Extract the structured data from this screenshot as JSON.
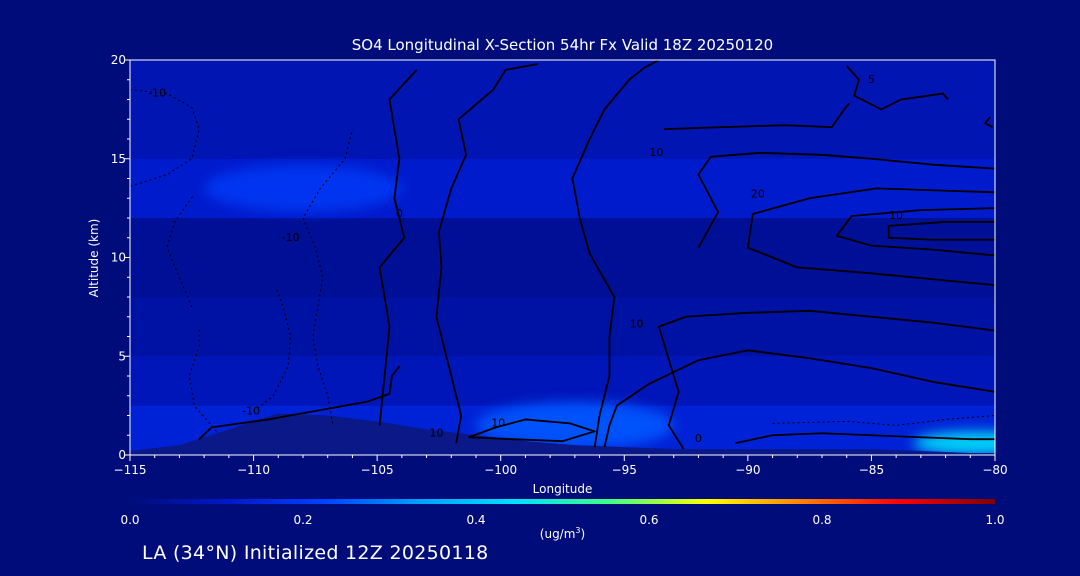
{
  "chart_data": {
    "type": "contour",
    "title": "SO4 Longitudinal X-Section 54hr  Fx Valid 18Z 20250120",
    "xlabel": "Longitude",
    "ylabel": "Altitude (km)",
    "xlim": [
      -115,
      -80
    ],
    "ylim": [
      0,
      20
    ],
    "x_ticks": [
      -115,
      -110,
      -105,
      -100,
      -95,
      -90,
      -85,
      -80
    ],
    "y_ticks": [
      0,
      5,
      10,
      15,
      20
    ],
    "colorbar": {
      "label": "(ug/m3)",
      "label_base": "(ug/m",
      "label_sup": "3",
      "label_end": ")",
      "range": [
        0.0,
        1.0
      ],
      "ticks": [
        "0.0",
        "0.2",
        "0.4",
        "0.6",
        "0.8",
        "1.0"
      ],
      "colors": [
        "#000c7a",
        "#0018c8",
        "#0040ff",
        "#00a0ff",
        "#00e0ff",
        "#40ff80",
        "#ffff00",
        "#ff8000",
        "#ff0000",
        "#800000"
      ]
    },
    "shading_bands": [
      {
        "y0": 15,
        "y1": 20,
        "value": 0.08
      },
      {
        "y0": 12,
        "y1": 15,
        "value": 0.12
      },
      {
        "y0": 8,
        "y1": 12,
        "value": 0.04
      },
      {
        "y0": 5,
        "y1": 8,
        "value": 0.06
      },
      {
        "y0": 2.5,
        "y1": 5,
        "value": 0.09
      },
      {
        "y0": 0,
        "y1": 2.5,
        "value": 0.14
      }
    ],
    "highlights": [
      {
        "x": -108,
        "y": 13.5,
        "rx": 4,
        "ry": 1.2,
        "value": 0.2
      },
      {
        "x": -97,
        "y": 1.5,
        "rx": 4,
        "ry": 1.2,
        "value": 0.25
      },
      {
        "x": -80.8,
        "y": 0.6,
        "rx": 2.5,
        "ry": 0.6,
        "value": 0.45
      }
    ],
    "terrain": {
      "x": [
        -115,
        -113,
        -111,
        -109,
        -107,
        -105,
        -103,
        -101,
        -99,
        -97,
        -95,
        -93,
        -91,
        -89,
        -87,
        -85,
        -83,
        -81,
        -80
      ],
      "y": [
        0.2,
        0.5,
        1.3,
        2.1,
        2.0,
        1.7,
        1.3,
        1.0,
        0.7,
        0.5,
        0.4,
        0.3,
        0.3,
        0.3,
        0.3,
        0.3,
        0.2,
        0.1,
        0.1
      ]
    },
    "contours": [
      {
        "value": 0,
        "points": [
          [
            -104.9,
            1.5
          ],
          [
            -104.7,
            4
          ],
          [
            -104.5,
            6.5
          ],
          [
            -104.9,
            9.5
          ],
          [
            -103.9,
            11
          ],
          [
            -104.3,
            13
          ],
          [
            -104.1,
            15
          ],
          [
            -104.5,
            18
          ],
          [
            -103.4,
            19.5
          ]
        ]
      },
      {
        "value": 0,
        "points": [
          [
            -101.8,
            0.6
          ],
          [
            -101.6,
            2
          ],
          [
            -102.1,
            4.5
          ],
          [
            -102.6,
            7
          ],
          [
            -102.4,
            9.5
          ],
          [
            -102.5,
            11.3
          ],
          [
            -102.0,
            13.5
          ],
          [
            -101.4,
            15.2
          ],
          [
            -101.7,
            17
          ],
          [
            -100.3,
            18.5
          ],
          [
            -99.8,
            19.5
          ],
          [
            -98.5,
            19.8
          ]
        ]
      },
      {
        "value": 0,
        "points": [
          [
            -96.2,
            0.4
          ],
          [
            -96.0,
            2
          ],
          [
            -95.6,
            4
          ],
          [
            -95.6,
            6
          ],
          [
            -95.4,
            8
          ],
          [
            -96.4,
            10.2
          ],
          [
            -96.8,
            12
          ],
          [
            -97.1,
            14
          ],
          [
            -96.4,
            16
          ],
          [
            -95.8,
            17.5
          ],
          [
            -94.8,
            19
          ],
          [
            -94.2,
            19.6
          ],
          [
            -93.6,
            20
          ]
        ]
      },
      {
        "value": 10,
        "points": [
          [
            -92.6,
            0.3
          ],
          [
            -93.2,
            1.5
          ],
          [
            -92.8,
            3.2
          ],
          [
            -93.6,
            6.5
          ],
          [
            -92.5,
            7
          ],
          [
            -90,
            7.2
          ],
          [
            -87.5,
            7.3
          ],
          [
            -85,
            7
          ],
          [
            -82.5,
            6.7
          ],
          [
            -80,
            6.3
          ]
        ]
      },
      {
        "value": 10,
        "points": [
          [
            -80,
            3.2
          ],
          [
            -82.5,
            3.7
          ],
          [
            -85,
            4.4
          ],
          [
            -87.5,
            4.9
          ],
          [
            -90,
            5.3
          ],
          [
            -92,
            4.8
          ],
          [
            -94,
            3.6
          ],
          [
            -95.3,
            2.5
          ],
          [
            -95.6,
            1.5
          ],
          [
            -95.8,
            0.4
          ]
        ]
      },
      {
        "value": 0,
        "points": [
          [
            -90.5,
            0.6
          ],
          [
            -89,
            1
          ],
          [
            -87,
            1.1
          ],
          [
            -85,
            1.0
          ],
          [
            -83,
            0.9
          ],
          [
            -81,
            0.8
          ],
          [
            -80,
            0.8
          ]
        ]
      },
      {
        "value": 10,
        "points": [
          [
            -92,
            10.5
          ],
          [
            -91.2,
            12.3
          ],
          [
            -92,
            14.2
          ],
          [
            -91.5,
            15.1
          ],
          [
            -89.5,
            15.3
          ],
          [
            -87,
            15.2
          ],
          [
            -85,
            15.0
          ],
          [
            -82.5,
            14.7
          ],
          [
            -80,
            14.5
          ]
        ]
      },
      {
        "value": 20,
        "points": [
          [
            -80,
            13.3
          ],
          [
            -84.8,
            13.5
          ],
          [
            -87.5,
            13
          ],
          [
            -89.8,
            12.2
          ],
          [
            -90,
            10.5
          ],
          [
            -88,
            9.5
          ],
          [
            -85,
            9.2
          ],
          [
            -82.5,
            8.9
          ],
          [
            -80,
            8.6
          ]
        ]
      },
      {
        "value": 10,
        "points": [
          [
            -80,
            12.5
          ],
          [
            -83,
            12.4
          ],
          [
            -85.8,
            12.1
          ],
          [
            -86.4,
            11.1
          ],
          [
            -85,
            10.6
          ],
          [
            -82.5,
            10.4
          ],
          [
            -80,
            10.1
          ]
        ]
      },
      {
        "value": 20,
        "points": [
          [
            -80,
            11.8
          ],
          [
            -82,
            11.8
          ],
          [
            -84.3,
            11.6
          ],
          [
            -84.3,
            11.0
          ],
          [
            -82.5,
            10.9
          ],
          [
            -80,
            10.9
          ]
        ]
      },
      {
        "value": 5,
        "points": [
          [
            -86,
            19.7
          ],
          [
            -85.5,
            19
          ],
          [
            -85.7,
            18.2
          ],
          [
            -84.6,
            17.5
          ],
          [
            -83.8,
            18
          ],
          [
            -82.1,
            18.3
          ],
          [
            -81.9,
            18.0
          ]
        ]
      },
      {
        "value": 10,
        "points": [
          [
            -93.4,
            16.5
          ],
          [
            -91,
            16.6
          ],
          [
            -88.5,
            16.7
          ],
          [
            -86.6,
            16.6
          ],
          [
            -86.1,
            17.5
          ],
          [
            -85.9,
            17.8
          ]
        ]
      },
      {
        "value": 0,
        "points": [
          [
            -80.1,
            16.6
          ],
          [
            -80.4,
            16.8
          ],
          [
            -80.2,
            17.1
          ]
        ]
      },
      {
        "value": 10,
        "points": [
          [
            -112.2,
            0.8
          ],
          [
            -111.7,
            1.4
          ],
          [
            -109.4,
            1.8
          ],
          [
            -107.2,
            2.3
          ],
          [
            -105.4,
            2.7
          ],
          [
            -104.5,
            3.1
          ],
          [
            -104.4,
            4.0
          ],
          [
            -104.1,
            4.5
          ]
        ]
      },
      {
        "value": 10,
        "points": [
          [
            -101.3,
            0.9
          ],
          [
            -100.2,
            1.4
          ],
          [
            -99,
            1.8
          ],
          [
            -97.2,
            1.6
          ],
          [
            -96.2,
            1.2
          ],
          [
            -97.5,
            0.7
          ],
          [
            -99.5,
            0.8
          ],
          [
            -101.3,
            0.9
          ]
        ]
      }
    ],
    "dashed_contours": [
      {
        "value": -10,
        "points": [
          [
            -115,
            18.5
          ],
          [
            -113.5,
            18.3
          ],
          [
            -112.5,
            17.6
          ],
          [
            -112.2,
            16.5
          ],
          [
            -112.5,
            15.0
          ],
          [
            -113.5,
            14.2
          ],
          [
            -115,
            13.6
          ]
        ]
      },
      {
        "value": -10,
        "points": [
          [
            -112.5,
            7.5
          ],
          [
            -113,
            9
          ],
          [
            -113.5,
            10.5
          ],
          [
            -113.2,
            11.8
          ],
          [
            -112.4,
            13.2
          ]
        ]
      },
      {
        "value": -10,
        "points": [
          [
            -111.5,
            1.2
          ],
          [
            -112.4,
            2.5
          ],
          [
            -112.6,
            4.0
          ],
          [
            -112.2,
            5.5
          ],
          [
            -112.2,
            6.5
          ]
        ]
      },
      {
        "value": -10,
        "points": [
          [
            -110,
            2.2
          ],
          [
            -109.2,
            3.0
          ],
          [
            -108.6,
            4.5
          ],
          [
            -108.5,
            6.0
          ],
          [
            -108.8,
            7.5
          ],
          [
            -109.1,
            8.5
          ]
        ]
      },
      {
        "value": -10,
        "points": [
          [
            -106.8,
            1.6
          ],
          [
            -107,
            3.0
          ],
          [
            -107.4,
            4.5
          ],
          [
            -107.6,
            6
          ],
          [
            -107.4,
            7.5
          ],
          [
            -107.2,
            9.0
          ],
          [
            -107.5,
            10.5
          ],
          [
            -108.0,
            12
          ],
          [
            -107.3,
            13.5
          ],
          [
            -106.3,
            15.0
          ],
          [
            -106.0,
            16.5
          ]
        ]
      },
      {
        "value": -10,
        "points": [
          [
            -89,
            1.6
          ],
          [
            -86,
            1.7
          ],
          [
            -84,
            1.5
          ],
          [
            -82,
            1.8
          ],
          [
            -80,
            2.0
          ]
        ]
      }
    ],
    "contour_labels": [
      {
        "text": "-10",
        "x": -113.9,
        "y": 18.3
      },
      {
        "text": "0",
        "x": -104.1,
        "y": 12.2
      },
      {
        "text": "-10",
        "x": -108.5,
        "y": 11.0
      },
      {
        "text": "-10",
        "x": -110.1,
        "y": 2.2
      },
      {
        "text": "10",
        "x": -102.6,
        "y": 1.1
      },
      {
        "text": "10",
        "x": -100.1,
        "y": 1.6
      },
      {
        "text": "0",
        "x": -92.0,
        "y": 0.8
      },
      {
        "text": "10",
        "x": -94.5,
        "y": 6.6
      },
      {
        "text": "10",
        "x": -93.7,
        "y": 15.3
      },
      {
        "text": "20",
        "x": -89.6,
        "y": 13.2
      },
      {
        "text": "10",
        "x": -84.0,
        "y": 12.1
      },
      {
        "text": "5",
        "x": -85.0,
        "y": 19.0
      }
    ]
  },
  "footer": {
    "text": "LA (34°N) Initialized 12Z 20250118"
  }
}
